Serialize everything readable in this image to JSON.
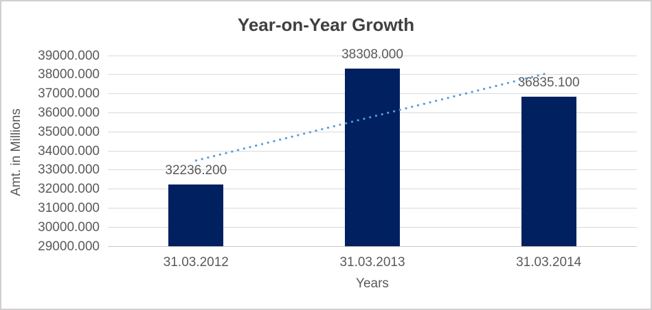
{
  "window": {
    "background": "#ffffff",
    "border_color": "#d0cece"
  },
  "chart_data": {
    "type": "bar",
    "title": "Year-on-Year Growth",
    "categories": [
      "31.03.2012",
      "31.03.2013",
      "31.03.2014"
    ],
    "values": [
      32236.2,
      38308.0,
      36835.1
    ],
    "data_labels": [
      "32236.200",
      "38308.000",
      "36835.100"
    ],
    "xlabel": "Years",
    "ylabel": "Amt. in Millions",
    "ylim": [
      29000,
      39000
    ],
    "ytick_interval": 1000,
    "ytick_labels": [
      "39000.000",
      "38000.000",
      "37000.000",
      "36000.000",
      "35000.000",
      "34000.000",
      "33000.000",
      "32000.000",
      "31000.000",
      "30000.000",
      "29000.000"
    ],
    "grid": true,
    "legend": "none",
    "trendline": {
      "kind": "linear",
      "style": "dotted",
      "color": "#5b9bd5"
    },
    "colors": {
      "bar": "#002060",
      "gridline": "#d9d9d9",
      "baseline": "#c6c6c6",
      "title_text": "#404040",
      "axis_text": "#595959"
    }
  }
}
